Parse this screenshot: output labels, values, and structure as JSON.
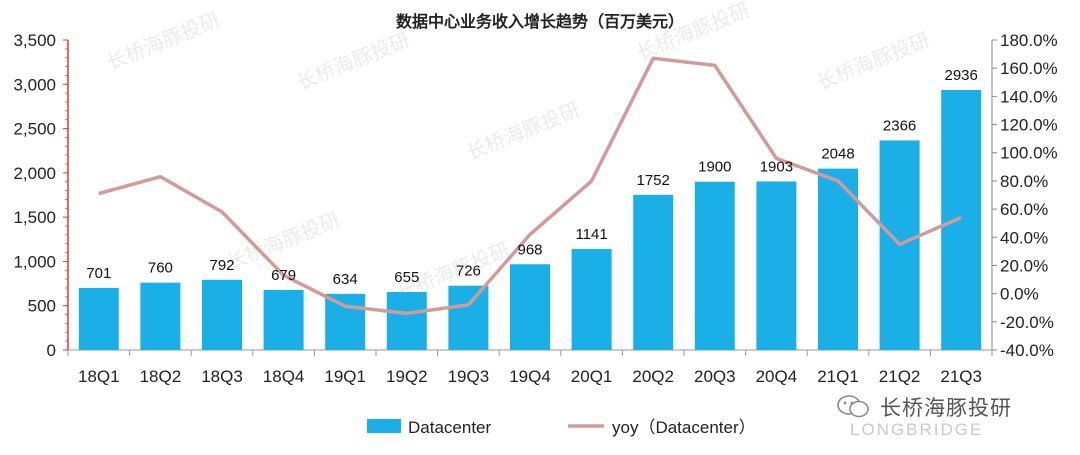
{
  "chart_data": {
    "type": "bar",
    "title": "数据中心业务收入增长趋势（百万美元）",
    "categories": [
      "18Q1",
      "18Q2",
      "18Q3",
      "18Q4",
      "19Q1",
      "19Q2",
      "19Q3",
      "19Q4",
      "20Q1",
      "20Q2",
      "20Q3",
      "20Q4",
      "21Q1",
      "21Q2",
      "21Q3"
    ],
    "series": [
      {
        "name": "Datacenter",
        "type": "bar",
        "axis": "left",
        "color": "#1aafe6",
        "values": [
          701,
          760,
          792,
          679,
          634,
          655,
          726,
          968,
          1141,
          1752,
          1900,
          1903,
          2048,
          2366,
          2936
        ]
      },
      {
        "name": "yoy（Datacenter）",
        "type": "line",
        "axis": "right",
        "color": "#d39a9a",
        "values": [
          71.0,
          83.0,
          58.0,
          13.0,
          -9.0,
          -14.0,
          -8.0,
          42.0,
          80.0,
          167.0,
          162.0,
          96.0,
          80.0,
          35.0,
          54.0
        ]
      }
    ],
    "y_left": {
      "range": [
        0,
        3500
      ],
      "ticks": [
        "0",
        "500",
        "1,000",
        "1,500",
        "2,000",
        "2,500",
        "3,000",
        "3,500"
      ]
    },
    "y_right": {
      "range": [
        -40,
        180
      ],
      "ticks": [
        "-40.0%",
        "-20.0%",
        "0.0%",
        "20.0%",
        "40.0%",
        "60.0%",
        "80.0%",
        "100.0%",
        "120.0%",
        "140.0%",
        "160.0%",
        "180.0%"
      ]
    },
    "legend_position": "bottom-center",
    "grid": false
  },
  "watermark": {
    "text": "长桥海豚投研"
  },
  "brand": {
    "name": "长桥海豚投研",
    "subtitle": "LONGBRIDGE",
    "accent": "#1aafe6"
  }
}
